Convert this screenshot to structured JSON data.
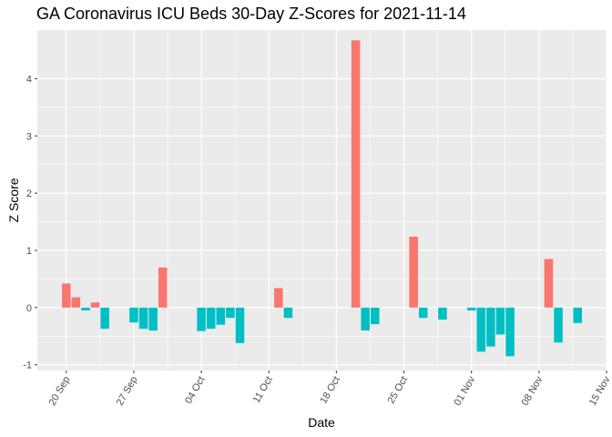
{
  "chart_data": {
    "type": "bar",
    "title": "GA Coronavirus ICU Beds 30-Day Z-Scores for 2021-11-14",
    "xlabel": "Date",
    "ylabel": "Z Score",
    "grid": true,
    "legend": "none",
    "xlim": [
      "2021-09-17",
      "2021-11-15"
    ],
    "ylim": [
      -1.1,
      4.85
    ],
    "x_ticks": [
      "20 Sep",
      "27 Sep",
      "04 Oct",
      "11 Oct",
      "18 Oct",
      "25 Oct",
      "01 Nov",
      "08 Nov",
      "15 Nov"
    ],
    "y_ticks": [
      "-1",
      "0",
      "1",
      "2",
      "3",
      "4"
    ],
    "colors": {
      "positive": "#F8766D",
      "negative": "#00BFC4",
      "panel": "#EBEBEB",
      "grid": "#FFFFFF"
    },
    "points": [
      {
        "date": "2021-09-20",
        "value": 0.42
      },
      {
        "date": "2021-09-21",
        "value": 0.18
      },
      {
        "date": "2021-09-22",
        "value": -0.05
      },
      {
        "date": "2021-09-23",
        "value": 0.09
      },
      {
        "date": "2021-09-24",
        "value": -0.37
      },
      {
        "date": "2021-09-27",
        "value": -0.26
      },
      {
        "date": "2021-09-28",
        "value": -0.37
      },
      {
        "date": "2021-09-29",
        "value": -0.4
      },
      {
        "date": "2021-09-30",
        "value": 0.7
      },
      {
        "date": "2021-10-04",
        "value": -0.41
      },
      {
        "date": "2021-10-05",
        "value": -0.37
      },
      {
        "date": "2021-10-06",
        "value": -0.3
      },
      {
        "date": "2021-10-07",
        "value": -0.18
      },
      {
        "date": "2021-10-08",
        "value": -0.62
      },
      {
        "date": "2021-10-12",
        "value": 0.34
      },
      {
        "date": "2021-10-13",
        "value": -0.18
      },
      {
        "date": "2021-10-20",
        "value": 4.67
      },
      {
        "date": "2021-10-21",
        "value": -0.4
      },
      {
        "date": "2021-10-22",
        "value": -0.29
      },
      {
        "date": "2021-10-26",
        "value": 1.24
      },
      {
        "date": "2021-10-27",
        "value": -0.18
      },
      {
        "date": "2021-10-29",
        "value": -0.21
      },
      {
        "date": "2021-11-01",
        "value": -0.05
      },
      {
        "date": "2021-11-02",
        "value": -0.77
      },
      {
        "date": "2021-11-03",
        "value": -0.68
      },
      {
        "date": "2021-11-04",
        "value": -0.47
      },
      {
        "date": "2021-11-05",
        "value": -0.85
      },
      {
        "date": "2021-11-09",
        "value": 0.85
      },
      {
        "date": "2021-11-10",
        "value": -0.61
      },
      {
        "date": "2021-11-12",
        "value": -0.27
      }
    ]
  }
}
